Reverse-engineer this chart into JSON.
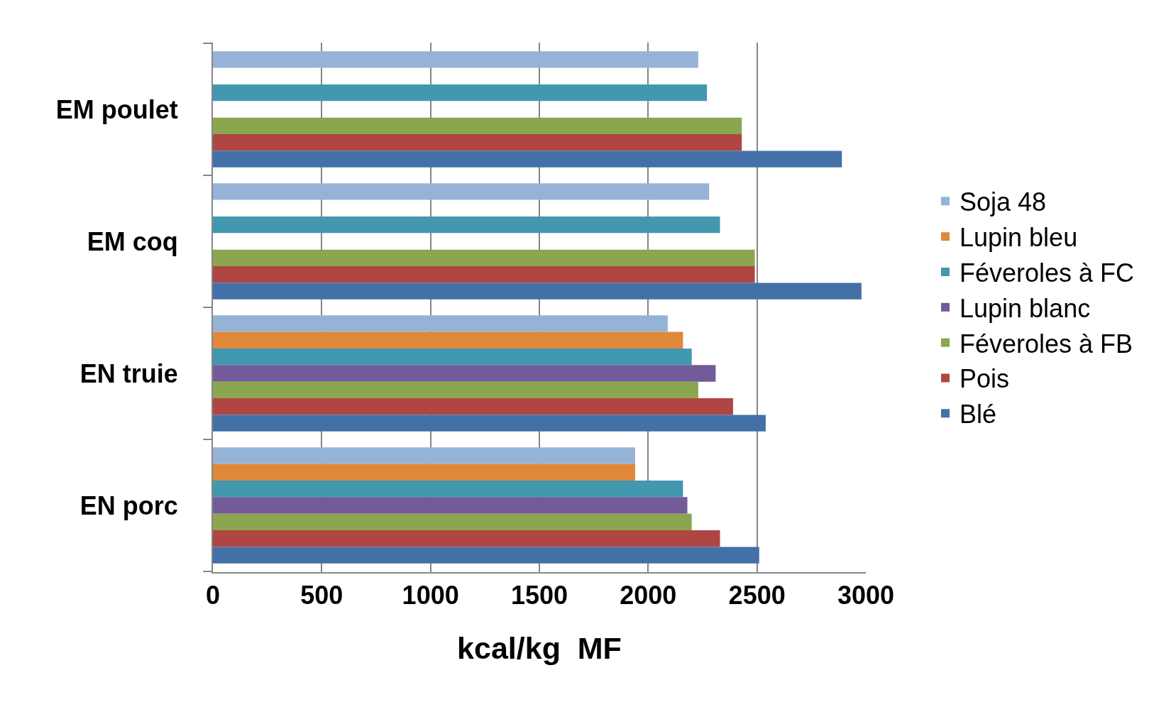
{
  "chart_data": {
    "type": "bar",
    "orientation": "horizontal",
    "xlabel": "kcal/kg  MF",
    "categories": [
      "EM poulet",
      "EM coq",
      "EN truie",
      "EN porc"
    ],
    "series": [
      {
        "name": "Soja 48",
        "color": "#95b3d7",
        "values": [
          2230,
          2280,
          2090,
          1940
        ]
      },
      {
        "name": "Lupin bleu",
        "color": "#e0883a",
        "values": [
          null,
          null,
          2160,
          1940
        ]
      },
      {
        "name": "Féveroles à FC",
        "color": "#4198af",
        "values": [
          2270,
          2330,
          2200,
          2160
        ]
      },
      {
        "name": "Lupin blanc",
        "color": "#735a99",
        "values": [
          null,
          null,
          2310,
          2180
        ]
      },
      {
        "name": "Féveroles à FB",
        "color": "#8ba64e",
        "values": [
          2430,
          2490,
          2230,
          2200
        ]
      },
      {
        "name": "Pois",
        "color": "#b04643",
        "values": [
          2430,
          2490,
          2390,
          2330
        ]
      },
      {
        "name": "Blé",
        "color": "#4470a8",
        "values": [
          2890,
          2980,
          2540,
          2510
        ]
      }
    ],
    "xlim": [
      0,
      3000
    ],
    "xticks": [
      0,
      500,
      1000,
      1500,
      2000,
      2500,
      3000
    ],
    "grid": "x",
    "legend": "right"
  }
}
